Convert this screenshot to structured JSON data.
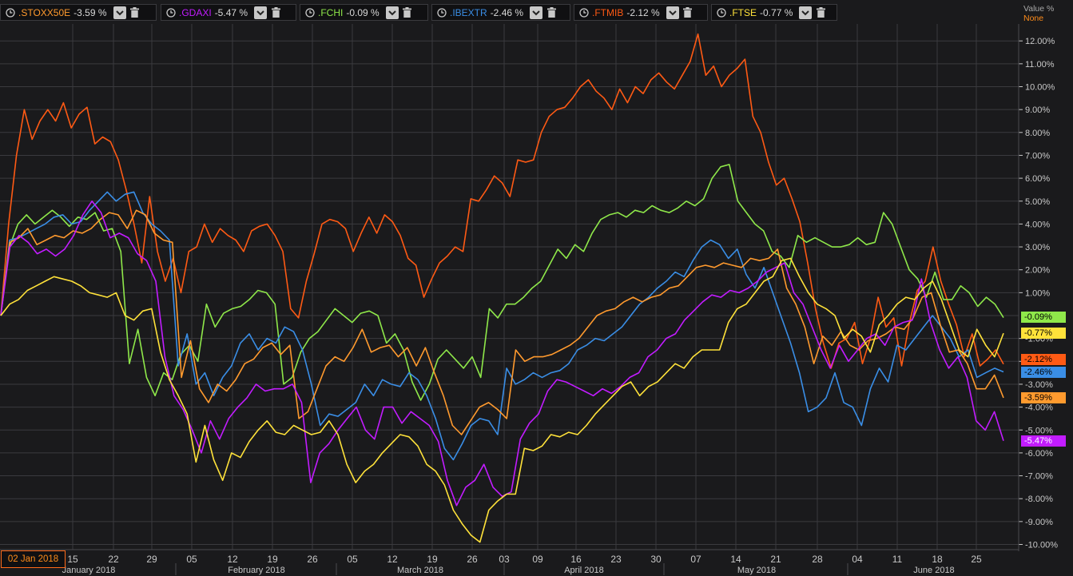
{
  "colors": {
    "background": "#1a1a1c",
    "grid": "#3a3a3e",
    "axis_text": "#c8c8c8"
  },
  "legend": [
    {
      "symbol": ".STOXX50E",
      "change": "-3.59 %",
      "color": "#ff9a2e"
    },
    {
      "symbol": ".GDAXI",
      "change": "-5.47 %",
      "color": "#c21cff"
    },
    {
      "symbol": ".FCHI",
      "change": "-0.09 %",
      "color": "#8fe84a"
    },
    {
      "symbol": ".IBEXTR",
      "change": "-2.46 %",
      "color": "#3a8ee6"
    },
    {
      "symbol": ".FTMIB",
      "change": "-2.12 %",
      "color": "#ff5a14"
    },
    {
      "symbol": ".FTSE",
      "change": "-0.77 %",
      "color": "#ffe23a"
    }
  ],
  "value_axis_header": {
    "title": "Value %",
    "subtitle": "None"
  },
  "cursor_date": "02 Jan 2018",
  "chart_data": {
    "type": "line",
    "y_unit": "%",
    "ylim": [
      -10.2,
      12.6
    ],
    "y_ticks": [
      12,
      11,
      10,
      9,
      8,
      7,
      6,
      5,
      4,
      3,
      2,
      1,
      -1,
      -2,
      -3,
      -4,
      -5,
      -6,
      -7,
      -8,
      -9,
      -10
    ],
    "y_tick_labels": [
      "12.00%",
      "11.00%",
      "10.00%",
      "9.00%",
      "8.00%",
      "7.00%",
      "6.00%",
      "5.00%",
      "4.00%",
      "3.00%",
      "2.00%",
      "1.00%",
      "-1.00%",
      "-2.00%",
      "-3.00%",
      "-4.00%",
      "-5.00%",
      "-6.00%",
      "-7.00%",
      "-8.00%",
      "-9.00%",
      "-10.00%"
    ],
    "x_day_labels": [
      "15",
      "22",
      "29",
      "05",
      "12",
      "19",
      "26",
      "05",
      "12",
      "19",
      "26",
      "03",
      "09",
      "16",
      "23",
      "30",
      "07",
      "14",
      "21",
      "28",
      "04",
      "11",
      "18",
      "25"
    ],
    "x_month_labels": [
      "January 2018",
      "February 2018",
      "March 2018",
      "April 2018",
      "May 2018",
      "June 2018"
    ],
    "grid": true,
    "series": [
      {
        "name": ".FTMIB",
        "color": "#ff5a14",
        "last_label": "-2.12%",
        "values": [
          0,
          4,
          7,
          9,
          7.7,
          8.5,
          9,
          8.5,
          9.3,
          8.2,
          8.8,
          9.1,
          7.5,
          7.8,
          7.6,
          6.8,
          5.5,
          4,
          2.3,
          5.2,
          2.8,
          1.5,
          2.5,
          1,
          2.8,
          3,
          4,
          3.2,
          3.8,
          3.5,
          3.3,
          2.8,
          3.7,
          3.9,
          4,
          3.5,
          2.8,
          0.3,
          -0.1,
          1.5,
          2.7,
          4,
          4.2,
          4.1,
          3.8,
          2.8,
          3.6,
          4.3,
          3.6,
          4.4,
          4.1,
          3.5,
          2.5,
          2.2,
          0.8,
          1.6,
          2.3,
          2.6,
          3,
          2.8,
          5.1,
          5,
          5.5,
          6.1,
          5.8,
          5.2,
          6.8,
          6.7,
          6.8,
          8,
          8.7,
          9,
          9.1,
          9.5,
          10,
          10.3,
          9.8,
          9.5,
          9,
          9.9,
          9.3,
          10,
          9.7,
          10.3,
          10.6,
          10.2,
          9.9,
          10.5,
          11.1,
          12.3,
          10.5,
          10.9,
          10,
          10.5,
          10.8,
          11.2,
          8.7,
          8,
          6.7,
          5.7,
          6,
          5.1,
          4.1,
          2.3,
          0.3,
          -1.2,
          -2.3,
          -1.2,
          -1,
          -0.3,
          -2.1,
          -1,
          0.8,
          -0.5,
          -0.1,
          -2.2,
          -0.3,
          1.1,
          1.5,
          3,
          1.5,
          0.5,
          -0.4,
          -1.8,
          -0.8,
          -2.2,
          -1.9,
          -1.5,
          -2.12
        ]
      },
      {
        "name": ".FCHI",
        "color": "#8fe84a",
        "values": [
          0,
          3,
          4,
          4.4,
          4,
          4.3,
          4.6,
          4.3,
          3.9,
          4.3,
          4.2,
          4.5,
          3.7,
          3.8,
          2.8,
          -2.1,
          -0.6,
          -2.7,
          -3.5,
          -2.5,
          -2.8,
          -1.7,
          -1.3,
          -2,
          0.5,
          -0.5,
          0.1,
          0.3,
          0.4,
          0.7,
          1.1,
          1,
          0.5,
          -3,
          -2.7,
          -1.6,
          -1,
          -0.7,
          -0.2,
          0.3,
          0,
          -0.3,
          0.1,
          0.2,
          0,
          -1.2,
          -0.8,
          -1.5,
          -2.9,
          -3.7,
          -3,
          -1.9,
          -1.5,
          -1.9,
          -2.3,
          -1.8,
          -2.7,
          0.3,
          -0.1,
          0.5,
          0.5,
          0.8,
          1.2,
          1.5,
          2.2,
          2.9,
          2.5,
          3.1,
          2.8,
          3.6,
          4.2,
          4.4,
          4.5,
          4.3,
          4.6,
          4.5,
          4.8,
          4.6,
          4.5,
          4.7,
          5,
          4.8,
          5.1,
          6,
          6.5,
          6.6,
          5,
          4.5,
          4,
          3.7,
          2.8,
          2.6,
          2.1,
          3.5,
          3.2,
          3.4,
          3.2,
          3,
          3,
          3.1,
          3.4,
          3.1,
          3.2,
          4.5,
          4,
          3,
          2,
          1.6,
          0.8,
          1.9,
          0.7,
          0.7,
          1.3,
          1,
          0.4,
          0.8,
          0.5,
          -0.09
        ]
      },
      {
        "name": ".IBEXTR",
        "color": "#3a8ee6",
        "values": [
          0,
          3.3,
          3.4,
          3.6,
          3.8,
          4,
          4.3,
          4.4,
          4,
          4.1,
          4.6,
          5,
          5.4,
          5,
          5.3,
          5.4,
          4.5,
          4,
          3.7,
          3.3,
          -2.2,
          -0.8,
          -3,
          -2.5,
          -3.5,
          -2.7,
          -2.2,
          -1.2,
          -0.8,
          -1.5,
          -1,
          -1.2,
          -0.5,
          -0.7,
          -1.5,
          -3,
          -4.8,
          -4.3,
          -4.4,
          -4.1,
          -3.8,
          -3,
          -3.5,
          -2.8,
          -3,
          -3.1,
          -2.5,
          -2.8,
          -3.5,
          -4.5,
          -5.8,
          -6.3,
          -5.6,
          -4.8,
          -4.5,
          -4.6,
          -5.2,
          -2.3,
          -3,
          -2.8,
          -2.5,
          -2.7,
          -2.5,
          -2.4,
          -2.1,
          -1.5,
          -1.3,
          -1,
          -1.1,
          -0.8,
          -0.5,
          0,
          0.5,
          0.8,
          1.2,
          1.5,
          1.9,
          1.7,
          2.4,
          3,
          3.3,
          3.1,
          2.5,
          2.9,
          1.8,
          1.2,
          2.1,
          1,
          -0.1,
          -1.2,
          -2.5,
          -4.2,
          -4,
          -3.6,
          -2.5,
          -3.8,
          -4,
          -4.8,
          -3.2,
          -2.3,
          -2.9,
          -1.3,
          -1.5,
          -1,
          -0.5,
          0,
          -0.5,
          -1,
          -1.8,
          -1.5,
          -2.7,
          -2.5,
          -2.3,
          -2.46
        ]
      },
      {
        "name": ".STOXX50E",
        "color": "#ff9a2e",
        "values": [
          0,
          3.2,
          3.4,
          3.8,
          3.1,
          3.3,
          3.5,
          3.4,
          3.7,
          3.6,
          3.8,
          4.2,
          4.5,
          4.4,
          3.8,
          4.6,
          4.4,
          3.6,
          3.3,
          3.2,
          -2.7,
          -1.1,
          -3.2,
          -3.8,
          -3,
          -3.3,
          -2.8,
          -2.1,
          -1.9,
          -1.4,
          -1.2,
          -1.7,
          -1.3,
          -4.5,
          -4.2,
          -3.2,
          -2.2,
          -1.8,
          -2,
          -1.4,
          -0.6,
          -1.6,
          -1.4,
          -1.3,
          -1.8,
          -1.4,
          -2.2,
          -1.4,
          -2.5,
          -3.5,
          -4.8,
          -5.2,
          -4.6,
          -4,
          -3.8,
          -4.1,
          -4.5,
          -1.5,
          -2,
          -1.8,
          -1.8,
          -1.7,
          -1.5,
          -1.3,
          -1,
          -0.5,
          0,
          0.2,
          0.3,
          0.6,
          0.8,
          0.6,
          0.8,
          0.9,
          1.2,
          1.3,
          1.7,
          2.1,
          2.2,
          2.1,
          2.3,
          2.2,
          2.1,
          2.5,
          2.4,
          2.5,
          2.9,
          1.2,
          0.5,
          -0.5,
          -2.1,
          -0.9,
          -1.3,
          -0.7,
          -1.3,
          -1.5,
          -1.1,
          -1,
          -0.8,
          -0.5,
          -0.6,
          -0.1,
          0.8,
          1,
          -0.4,
          -1.6,
          -1.5,
          -2.1,
          -3.2,
          -3.2,
          -2.6,
          -3.59
        ]
      },
      {
        "name": ".GDAXI",
        "color": "#c21cff",
        "values": [
          0,
          3,
          3.5,
          3.2,
          2.7,
          2.9,
          2.6,
          2.9,
          3.5,
          4.4,
          5,
          4.5,
          3.4,
          3.6,
          3.4,
          2.7,
          2.4,
          1.5,
          -1.8,
          -3.5,
          -4.1,
          -5,
          -6,
          -4.6,
          -5.4,
          -4.5,
          -4,
          -3.6,
          -3,
          -3.3,
          -3.2,
          -3.2,
          -3,
          -3.8,
          -7.3,
          -6,
          -5.6,
          -5,
          -4.5,
          -4,
          -5,
          -5.4,
          -4,
          -4,
          -4.7,
          -4.2,
          -4.5,
          -4.8,
          -5.5,
          -7.2,
          -8.3,
          -7.5,
          -7.2,
          -6.5,
          -7.5,
          -7.9,
          -7.7,
          -5.4,
          -4.7,
          -4.3,
          -3.3,
          -2.8,
          -2.9,
          -3.1,
          -3.3,
          -3.5,
          -3.2,
          -3.4,
          -3.1,
          -2.7,
          -2.5,
          -1.8,
          -1.5,
          -1,
          -0.8,
          -0.2,
          0.2,
          0.6,
          0.9,
          0.8,
          1.1,
          1,
          1.2,
          1.5,
          1.9,
          2.1,
          2.3,
          1,
          0.5,
          -0.5,
          -1.5,
          -2.3,
          -1.3,
          -2,
          -1.5,
          -1,
          -0.8,
          -1.3,
          -0.5,
          -0.3,
          -0.2,
          1.6,
          -0.3,
          -1.5,
          -2.3,
          -1.8,
          -2.7,
          -4.6,
          -5,
          -4.2,
          -5.47
        ]
      },
      {
        "name": ".FTSE",
        "color": "#ffe23a",
        "values": [
          0,
          0.5,
          0.7,
          1.1,
          1.3,
          1.5,
          1.7,
          1.6,
          1.5,
          1.3,
          1,
          0.9,
          0.8,
          1,
          0,
          -0.2,
          0.2,
          0.3,
          -1.6,
          -2.8,
          -3.5,
          -4.3,
          -6.4,
          -4.8,
          -6.3,
          -7.2,
          -6,
          -6.2,
          -5.5,
          -5,
          -4.6,
          -5.1,
          -5.2,
          -4.8,
          -5,
          -5.2,
          -5.1,
          -4.6,
          -5.2,
          -6.5,
          -7.3,
          -6.8,
          -6.5,
          -6,
          -5.6,
          -5.2,
          -5.3,
          -5.7,
          -6.5,
          -6.8,
          -7.4,
          -8.5,
          -9.1,
          -9.6,
          -9.9,
          -8.5,
          -8.1,
          -7.8,
          -7.8,
          -5.8,
          -5.9,
          -5.7,
          -5.2,
          -5.3,
          -5.1,
          -5.2,
          -4.8,
          -4.3,
          -3.9,
          -3.5,
          -3.1,
          -2.9,
          -3.5,
          -3.1,
          -2.9,
          -2.5,
          -2.1,
          -2.3,
          -1.8,
          -1.5,
          -1.5,
          -1.5,
          -0.3,
          0.3,
          0.5,
          1,
          1.5,
          1.7,
          2.4,
          2.5,
          1.7,
          1,
          0.5,
          0.3,
          0,
          -1,
          -0.6,
          -0.9,
          -1.6,
          -0.4,
          0,
          0.5,
          0.8,
          0.7,
          1.2,
          1.5,
          0.7,
          -0.4,
          -1.5,
          -1.8,
          -0.6,
          -1.3,
          -1.8,
          -0.77
        ]
      }
    ]
  }
}
